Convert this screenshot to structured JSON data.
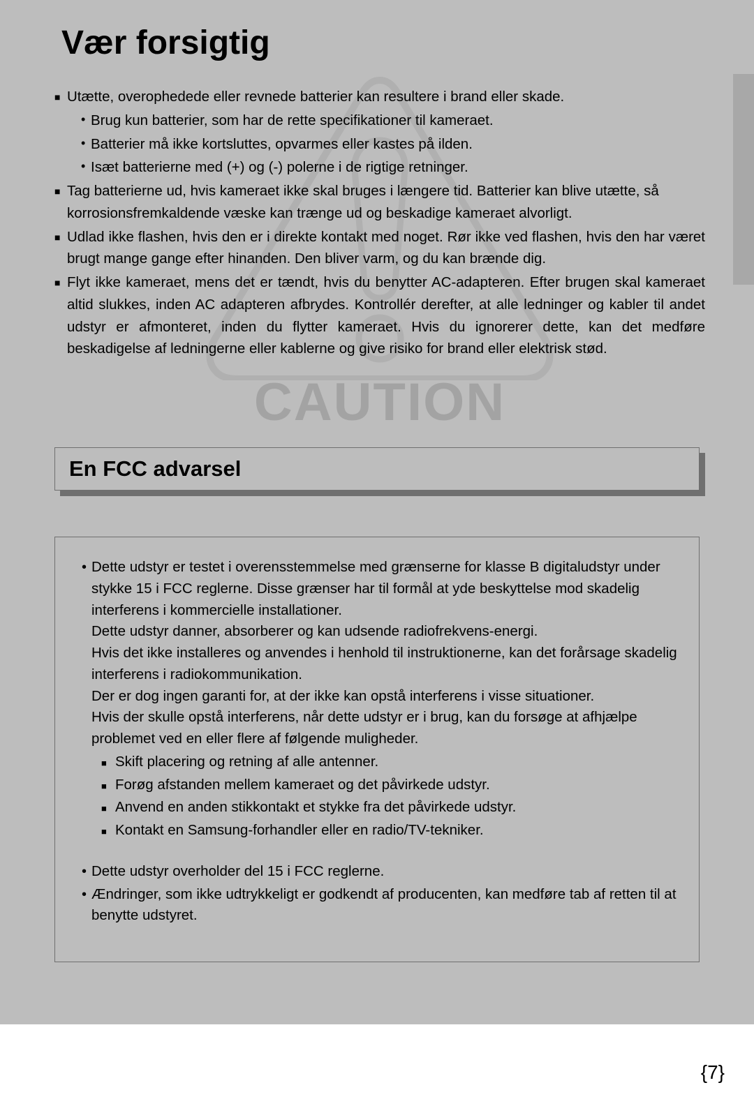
{
  "colors": {
    "page_bg": "#bdbdbd",
    "side_tab": "#a8a8a8",
    "shadow": "#6f6f6f",
    "watermark_stroke": "#8f8f8f",
    "text": "#000000"
  },
  "main_title": "Vær forsigtig",
  "watermark_label": "CAUTION",
  "caution_bullets": [
    {
      "text": "Utætte, overophedede eller revnede batterier kan resultere i brand eller skade.",
      "justify": false,
      "subs": [
        "Brug kun batterier, som har de rette specifikationer til kameraet.",
        "Batterier må ikke kortsluttes, opvarmes eller kastes på ilden.",
        "Isæt batterierne med (+) og (-) polerne i de rigtige retninger."
      ]
    },
    {
      "text": "Tag batterierne ud, hvis kameraet ikke skal bruges i længere tid. Batterier kan blive utætte, så korrosionsfremkaldende væske kan trænge ud og beskadige kameraet alvorligt.",
      "justify": false,
      "subs": []
    },
    {
      "text": "Udlad ikke flashen, hvis den er i direkte kontakt med noget. Rør ikke ved flashen, hvis den har været brugt mange gange efter hinanden. Den bliver varm, og du kan brænde dig.",
      "justify": true,
      "subs": []
    },
    {
      "text": "Flyt ikke kameraet, mens det er tændt, hvis du benytter AC-adapteren. Efter brugen skal kameraet altid slukkes, inden AC adapteren afbrydes. Kontrollér derefter, at alle ledninger og kabler til andet udstyr er afmonteret, inden du flytter kameraet. Hvis du ignorerer dette, kan det medføre beskadigelse af ledningerne eller kablerne og give risiko for brand eller elektrisk stød.",
      "justify": true,
      "subs": []
    }
  ],
  "fcc_title": "En FCC advarsel",
  "fcc_items": [
    {
      "type": "dot",
      "text": "Dette udstyr er testet i overensstemmelse med grænserne for klasse B digitaludstyr under stykke 15 i FCC reglerne.  Disse grænser har til formål at yde beskyttelse mod skadelig interferens i kommercielle installationer.\nDette udstyr danner, absorberer og kan udsende radiofrekvens-energi.\nHvis det ikke installeres og anvendes i henhold til instruktionerne, kan det forårsage skadelig interferens i radiokommunikation.\nDer er dog ingen garanti for, at der ikke kan opstå interferens i visse situationer.\nHvis der skulle opstå interferens, når dette udstyr er i brug, kan du forsøge at afhjælpe problemet ved en eller flere af følgende muligheder.",
      "subs": [
        "Skift placering og retning af alle antenner.",
        "Forøg afstanden mellem kameraet og det påvirkede udstyr.",
        "Anvend en anden stikkontakt et stykke fra det påvirkede udstyr.",
        "Kontakt en Samsung-forhandler eller en radio/TV-tekniker."
      ]
    },
    {
      "type": "spacer"
    },
    {
      "type": "dot",
      "text": "Dette udstyr overholder del 15 i FCC reglerne.",
      "subs": []
    },
    {
      "type": "dot",
      "text": "Ændringer, som ikke udtrykkeligt er godkendt af producenten, kan medføre tab af retten til at benytte udstyret.",
      "subs": []
    }
  ],
  "page_number": "{7}"
}
